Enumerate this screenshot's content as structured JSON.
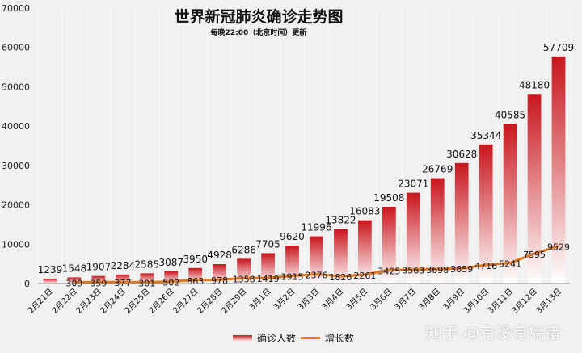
{
  "chart_data": {
    "type": "bar",
    "title": "世界新冠肺炎确诊走势图",
    "subtitle": "每晚22:00（北京时间）更新",
    "categories": [
      "2月21日",
      "2月22日",
      "2月23日",
      "2月24日",
      "2月25日",
      "2月26日",
      "2月27日",
      "2月28日",
      "2月29日",
      "3月1日",
      "3月2日",
      "3月3日",
      "3月4日",
      "3月5日",
      "3月6日",
      "3月7日",
      "3月8日",
      "3月9日",
      "3月10日",
      "3月11日",
      "3月12日",
      "3月13日"
    ],
    "series": [
      {
        "name": "确诊人数",
        "type": "bar",
        "color": "#c8161d",
        "values": [
          1239,
          1548,
          1907,
          2284,
          2585,
          3087,
          3950,
          4928,
          6286,
          7705,
          9620,
          11996,
          13822,
          16083,
          19508,
          23071,
          26769,
          30628,
          35344,
          40585,
          48180,
          57709
        ]
      },
      {
        "name": "增长数",
        "type": "line",
        "color": "#e07820",
        "values": [
          null,
          309,
          359,
          377,
          301,
          502,
          863,
          978,
          1358,
          1419,
          1915,
          2376,
          1826,
          2261,
          3425,
          3563,
          3698,
          3859,
          4716,
          5241,
          7595,
          9529
        ]
      }
    ],
    "ylim": [
      0,
      70000
    ],
    "yticks": [
      0,
      10000,
      20000,
      30000,
      40000,
      50000,
      60000,
      70000
    ],
    "grid": "vertical",
    "legend": "bottom"
  },
  "watermark": "知乎 @有没有搞错"
}
